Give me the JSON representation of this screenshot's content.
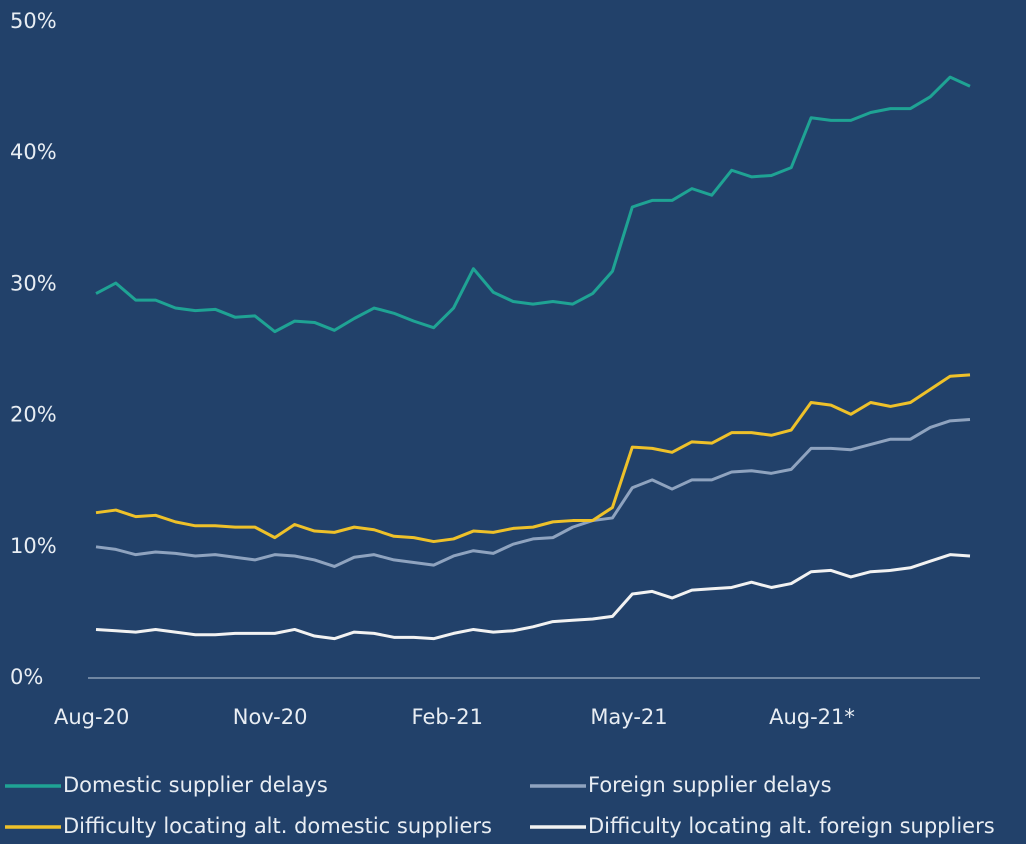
{
  "chart_data": {
    "type": "line",
    "categories": [
      "Aug-20",
      null,
      null,
      null,
      null,
      null,
      null,
      null,
      null,
      "Nov-20",
      null,
      null,
      null,
      null,
      null,
      null,
      null,
      null,
      "Feb-21",
      null,
      null,
      null,
      null,
      null,
      null,
      null,
      null,
      "May-21",
      null,
      null,
      null,
      null,
      null,
      null,
      null,
      null,
      "Aug-21*",
      null,
      null,
      null,
      null,
      null,
      null,
      null,
      null
    ],
    "series": [
      {
        "name": "Domestic supplier delays",
        "color": "#1fa394",
        "values": [
          29.3,
          30.1,
          28.8,
          28.8,
          28.2,
          28.0,
          28.1,
          27.5,
          27.6,
          26.4,
          27.2,
          27.1,
          26.5,
          27.4,
          28.2,
          27.8,
          27.2,
          26.7,
          28.2,
          31.2,
          29.4,
          28.7,
          28.5,
          28.7,
          28.5,
          29.3,
          31.0,
          35.9,
          36.4,
          36.4,
          37.3,
          36.8,
          38.7,
          38.2,
          38.3,
          38.9,
          42.7,
          42.5,
          42.5,
          43.1,
          43.4,
          43.4,
          44.3,
          45.8,
          45.1
        ]
      },
      {
        "name": "Foreign supplier delays",
        "color": "#8fa3bf",
        "values": [
          10.0,
          9.8,
          9.4,
          9.6,
          9.5,
          9.3,
          9.4,
          9.2,
          9.0,
          9.4,
          9.3,
          9.0,
          8.5,
          9.2,
          9.4,
          9.0,
          8.8,
          8.6,
          9.3,
          9.7,
          9.5,
          10.2,
          10.6,
          10.7,
          11.5,
          12.0,
          12.2,
          14.5,
          15.1,
          14.4,
          15.1,
          15.1,
          15.7,
          15.8,
          15.6,
          15.9,
          17.5,
          17.5,
          17.4,
          17.8,
          18.2,
          18.2,
          19.1,
          19.6,
          19.7
        ]
      },
      {
        "name": "Difficulty locating alt. domestic suppliers",
        "color": "#eec12a",
        "values": [
          12.6,
          12.8,
          12.3,
          12.4,
          11.9,
          11.6,
          11.6,
          11.5,
          11.5,
          10.7,
          11.7,
          11.2,
          11.1,
          11.5,
          11.3,
          10.8,
          10.7,
          10.4,
          10.6,
          11.2,
          11.1,
          11.4,
          11.5,
          11.9,
          12.0,
          12.0,
          13.0,
          17.6,
          17.5,
          17.2,
          18.0,
          17.9,
          18.7,
          18.7,
          18.5,
          18.9,
          21.0,
          20.8,
          20.1,
          21.0,
          20.7,
          21.0,
          22.0,
          23.0,
          23.1
        ]
      },
      {
        "name": "Difficulty locating alt. foreign suppliers",
        "color": "#f2f2f2",
        "values": [
          3.7,
          3.6,
          3.5,
          3.7,
          3.5,
          3.3,
          3.3,
          3.4,
          3.4,
          3.4,
          3.7,
          3.2,
          3.0,
          3.5,
          3.4,
          3.1,
          3.1,
          3.0,
          3.4,
          3.7,
          3.5,
          3.6,
          3.9,
          4.3,
          4.4,
          4.5,
          4.7,
          6.4,
          6.6,
          6.1,
          6.7,
          6.8,
          6.9,
          7.3,
          6.9,
          7.2,
          8.1,
          8.2,
          7.7,
          8.1,
          8.2,
          8.4,
          8.9,
          9.4,
          9.3
        ]
      }
    ],
    "ylim": [
      0,
      50
    ],
    "yticks": [
      {
        "value": 0,
        "label": "0%"
      },
      {
        "value": 10,
        "label": "10%"
      },
      {
        "value": 20,
        "label": "20%"
      },
      {
        "value": 30,
        "label": "30%"
      },
      {
        "value": 40,
        "label": "40%"
      },
      {
        "value": 50,
        "label": "50%"
      }
    ],
    "grid": false
  }
}
